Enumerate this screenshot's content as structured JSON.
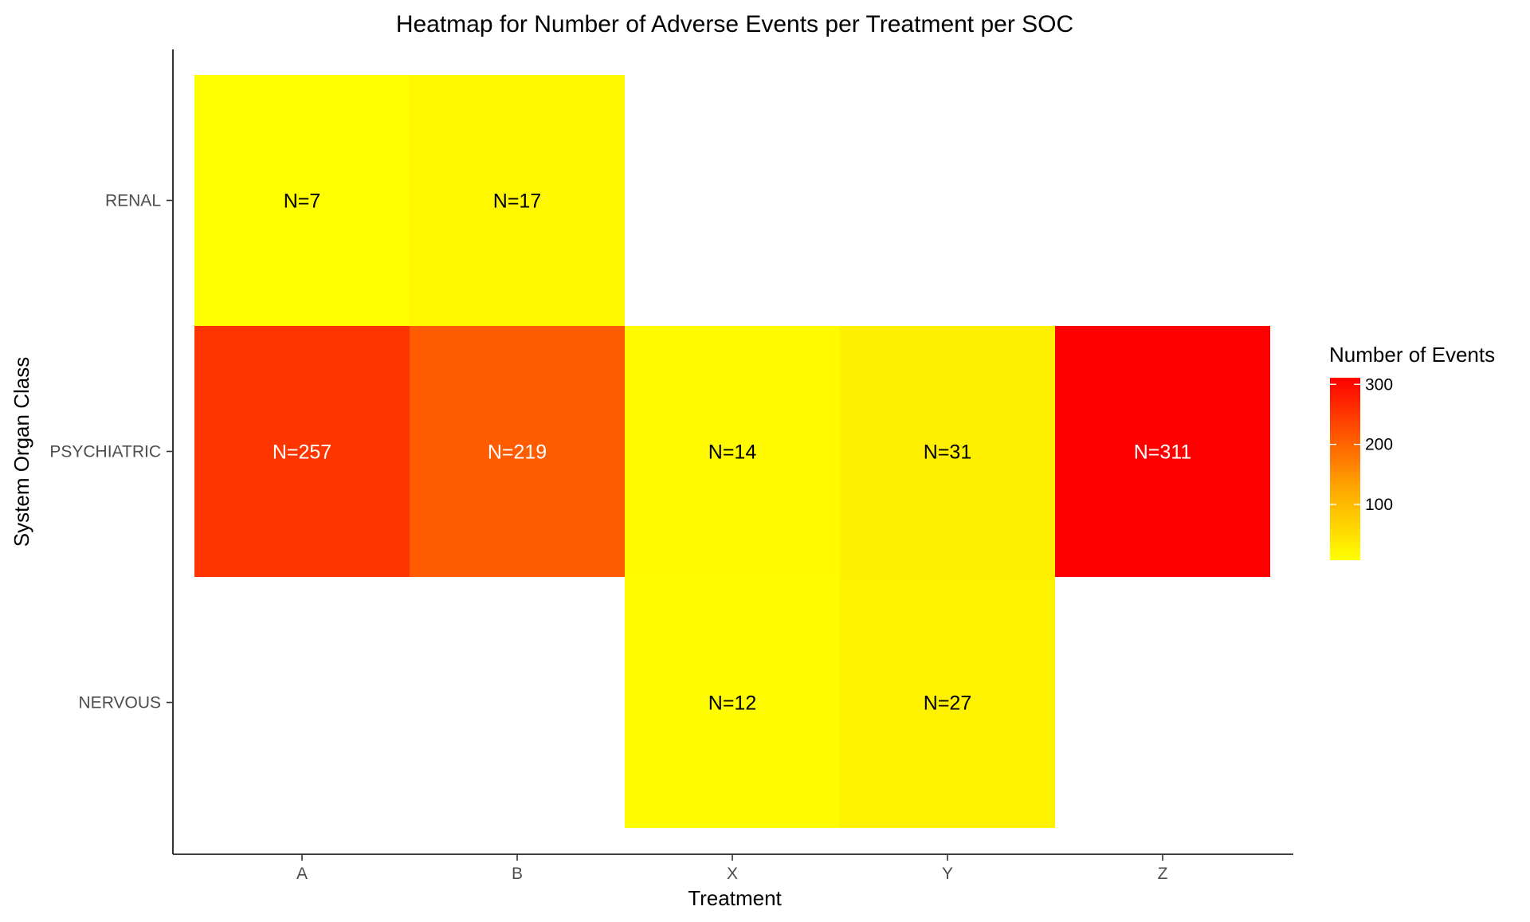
{
  "chart_data": {
    "type": "heatmap",
    "title": "Heatmap for Number of Adverse Events per Treatment per SOC",
    "xlabel": "Treatment",
    "ylabel": "System Organ Class",
    "x_categories": [
      "A",
      "B",
      "X",
      "Y",
      "Z"
    ],
    "y_categories": [
      "RENAL",
      "PSYCHIATRIC",
      "NERVOUS"
    ],
    "cells": [
      {
        "x": "A",
        "y": "RENAL",
        "value": 7,
        "label": "N=7"
      },
      {
        "x": "B",
        "y": "RENAL",
        "value": 17,
        "label": "N=17"
      },
      {
        "x": "A",
        "y": "PSYCHIATRIC",
        "value": 257,
        "label": "N=257"
      },
      {
        "x": "B",
        "y": "PSYCHIATRIC",
        "value": 219,
        "label": "N=219"
      },
      {
        "x": "X",
        "y": "PSYCHIATRIC",
        "value": 14,
        "label": "N=14"
      },
      {
        "x": "Y",
        "y": "PSYCHIATRIC",
        "value": 31,
        "label": "N=31"
      },
      {
        "x": "Z",
        "y": "PSYCHIATRIC",
        "value": 311,
        "label": "N=311"
      },
      {
        "x": "X",
        "y": "NERVOUS",
        "value": 12,
        "label": "N=12"
      },
      {
        "x": "Y",
        "y": "NERVOUS",
        "value": 27,
        "label": "N=27"
      }
    ],
    "legend": {
      "title": "Number of Events",
      "min": 7,
      "max": 311,
      "ticks": [
        100,
        200,
        300
      ],
      "low_color": "#ffff00",
      "high_color": "#ff0000",
      "placement": "right"
    },
    "label_colors": {
      "dark": "#000000",
      "light": "#ffffff"
    }
  }
}
